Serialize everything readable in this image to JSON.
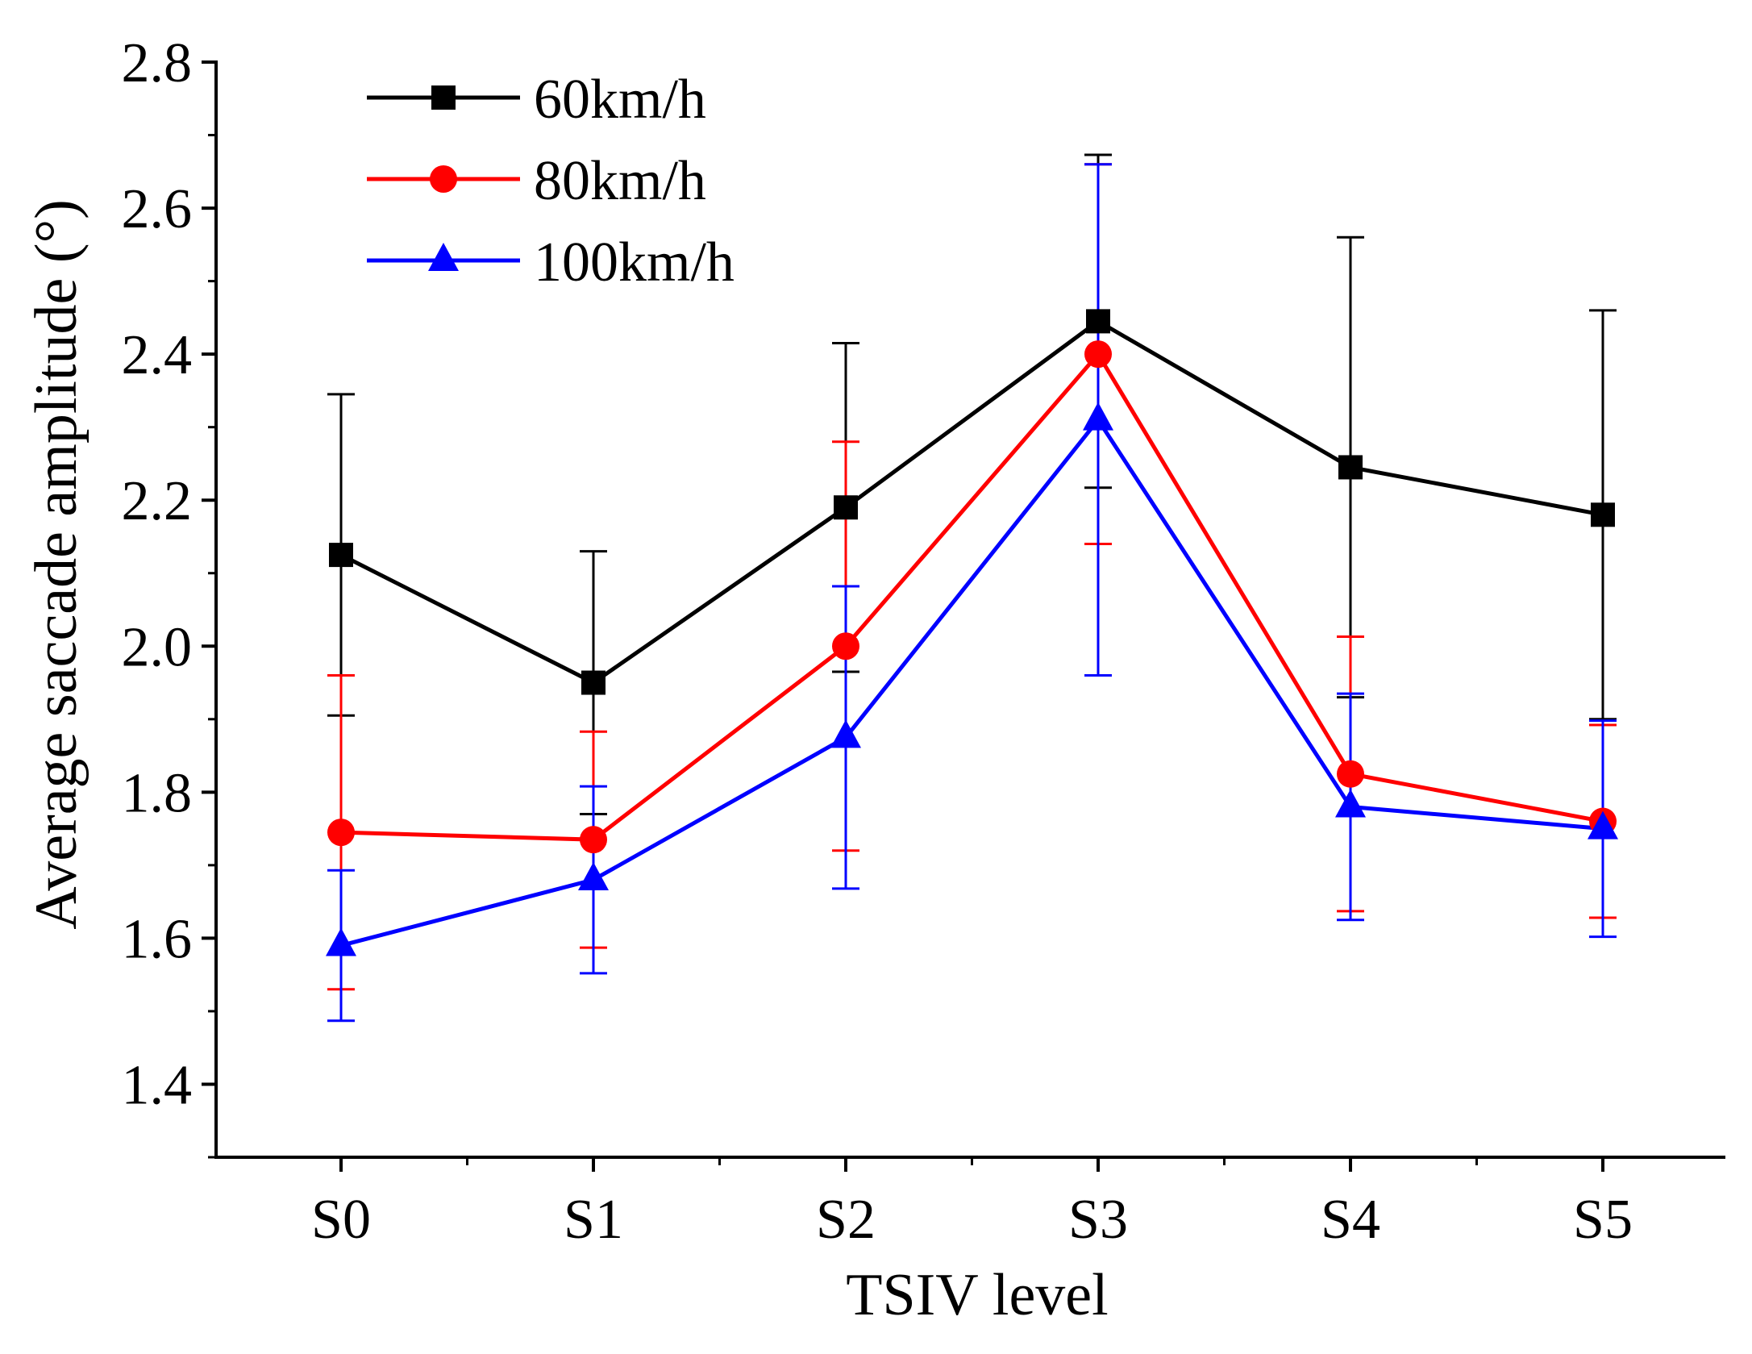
{
  "chart_data": {
    "type": "line",
    "title": "",
    "xlabel": "TSIV level",
    "ylabel": "Average saccade amplitude (°)",
    "categories": [
      "S0",
      "S1",
      "S2",
      "S3",
      "S4",
      "S5"
    ],
    "ylim": [
      1.3,
      2.8
    ],
    "yticks": [
      1.4,
      1.6,
      1.8,
      2.0,
      2.2,
      2.4,
      2.6,
      2.8
    ],
    "ytick_labels": [
      "1.4",
      "1.6",
      "1.8",
      "2.0",
      "2.2",
      "2.4",
      "2.6",
      "2.8"
    ],
    "grid": false,
    "legend_position": "top-left",
    "series": [
      {
        "name": "60km/h",
        "color": "#000000",
        "marker": "square",
        "values": [
          2.125,
          1.95,
          2.19,
          2.445,
          2.245,
          2.18
        ],
        "errors": [
          0.22,
          0.18,
          0.225,
          0.228,
          0.315,
          0.28
        ]
      },
      {
        "name": "80km/h",
        "color": "#ff0000",
        "marker": "circle",
        "values": [
          1.745,
          1.735,
          2.0,
          2.4,
          1.825,
          1.76
        ],
        "errors": [
          0.215,
          0.148,
          0.28,
          0.26,
          0.188,
          0.132
        ]
      },
      {
        "name": "100km/h",
        "color": "#0000ff",
        "marker": "triangle",
        "values": [
          1.59,
          1.68,
          1.875,
          2.31,
          1.78,
          1.75
        ],
        "errors": [
          0.103,
          0.128,
          0.207,
          0.35,
          0.155,
          0.148
        ]
      }
    ]
  }
}
